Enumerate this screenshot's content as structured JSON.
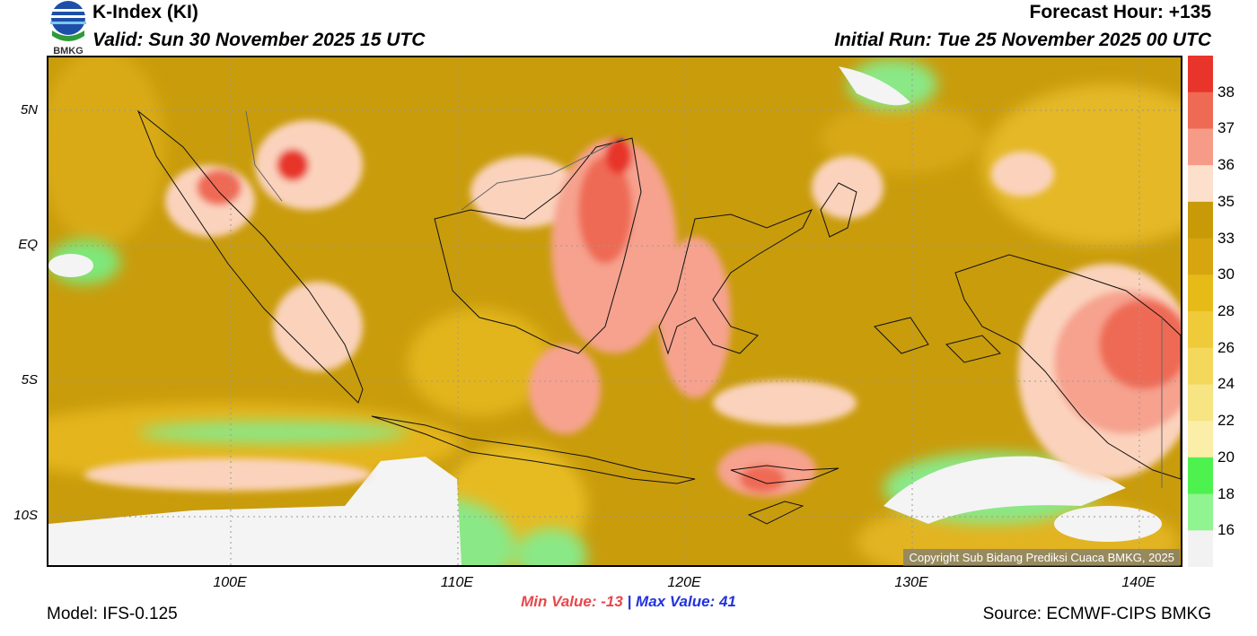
{
  "header": {
    "title": "K-Index (KI)",
    "valid": "Valid: Sun 30 November 2025 15 UTC",
    "forecast_hour": "Forecast Hour: +135",
    "initial_run": "Initial Run: Tue 25 November 2025 00 UTC",
    "logo_text": "BMKG"
  },
  "axes": {
    "lat_labels": [
      "5N",
      "EQ",
      "5S",
      "10S"
    ],
    "lon_labels": [
      "100E",
      "110E",
      "120E",
      "130E",
      "140E"
    ]
  },
  "colorbar": {
    "labels": [
      "38",
      "37",
      "36",
      "35",
      "33",
      "30",
      "28",
      "26",
      "24",
      "22",
      "20",
      "18",
      "16"
    ],
    "colors": [
      "#e8342a",
      "#ef6a54",
      "#f59b88",
      "#fde0cc",
      "#c89a08",
      "#d6a510",
      "#e6bb18",
      "#efcb3a",
      "#f3d85c",
      "#f7e482",
      "#faeea8",
      "#4ef24e",
      "#90f490",
      "#f2f2f2"
    ]
  },
  "copyright": "Copyright Sub Bidang Prediksi Cuaca BMKG, 2025",
  "stats": {
    "min_label": "Min Value: -13",
    "separator": "|",
    "max_label": "Max Value:  41"
  },
  "footer": {
    "model": "Model: IFS-0.125",
    "source": "Source: ECMWF-CIPS BMKG"
  }
}
